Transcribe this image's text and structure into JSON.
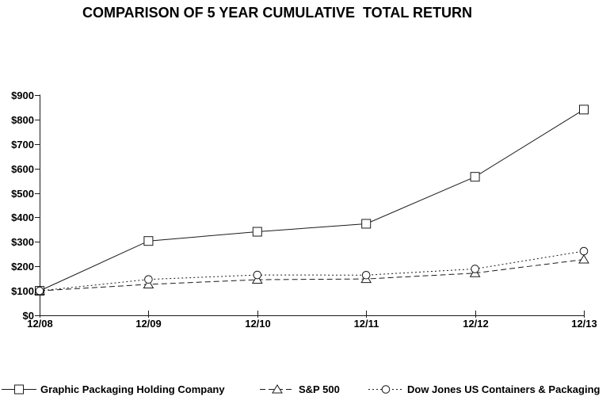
{
  "page": {
    "background": "#ffffff",
    "text_color": "#000000",
    "line_color": "#1a1a1a"
  },
  "chart_data": {
    "type": "line",
    "title": "COMPARISON OF 5 YEAR CUMULATIVE  TOTAL RETURN",
    "xlabel": "",
    "ylabel": "",
    "categories": [
      "12/08",
      "12/09",
      "12/10",
      "12/11",
      "12/12",
      "12/13"
    ],
    "y_tick_labels": [
      "$0",
      "$100",
      "$200",
      "$300",
      "$400",
      "$500",
      "$600",
      "$700",
      "$800",
      "$900"
    ],
    "ylim": [
      0,
      900
    ],
    "y_tick_step": 100,
    "grid": false,
    "legend_position": "bottom",
    "series": [
      {
        "name": "Graphic Packaging Holding Company",
        "marker": "square",
        "line_style": "solid",
        "color": "#1a1a1a",
        "values": [
          100,
          303.7,
          341.48,
          374.07,
          565.93,
          840.74
        ]
      },
      {
        "name": "S&P 500",
        "marker": "triangle",
        "line_style": "dashed",
        "color": "#1a1a1a",
        "values": [
          100,
          126.46,
          145.51,
          148.59,
          172.37,
          228.19
        ]
      },
      {
        "name": "Dow Jones US Containers & Packaging",
        "marker": "circle",
        "line_style": "dotted",
        "color": "#1a1a1a",
        "values": [
          100,
          146.71,
          164.83,
          164.32,
          189.57,
          262.22
        ]
      }
    ]
  }
}
